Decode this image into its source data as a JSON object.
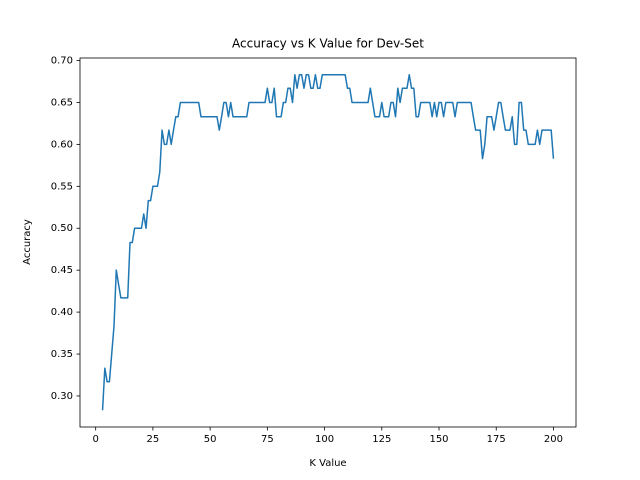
{
  "chart_data": {
    "type": "line",
    "title": "Accuracy vs K Value for Dev-Set",
    "x_label": "K Value",
    "y_label": "Accuracy",
    "x": [
      3,
      4,
      5,
      6,
      7,
      8,
      9,
      10,
      11,
      12,
      13,
      14,
      15,
      16,
      17,
      18,
      19,
      20,
      21,
      22,
      23,
      24,
      25,
      26,
      27,
      28,
      29,
      30,
      31,
      32,
      33,
      34,
      35,
      36,
      37,
      38,
      39,
      40,
      41,
      42,
      43,
      44,
      45,
      46,
      47,
      48,
      49,
      50,
      51,
      52,
      53,
      54,
      55,
      56,
      57,
      58,
      59,
      60,
      61,
      62,
      63,
      64,
      65,
      66,
      67,
      68,
      69,
      70,
      71,
      72,
      73,
      74,
      75,
      76,
      77,
      78,
      79,
      80,
      81,
      82,
      83,
      84,
      85,
      86,
      87,
      88,
      89,
      90,
      91,
      92,
      93,
      94,
      95,
      96,
      97,
      98,
      99,
      100,
      101,
      102,
      103,
      104,
      105,
      106,
      107,
      108,
      109,
      110,
      111,
      112,
      113,
      114,
      115,
      116,
      117,
      118,
      119,
      120,
      121,
      122,
      123,
      124,
      125,
      126,
      127,
      128,
      129,
      130,
      131,
      132,
      133,
      134,
      135,
      136,
      137,
      138,
      139,
      140,
      141,
      142,
      143,
      144,
      145,
      146,
      147,
      148,
      149,
      150,
      151,
      152,
      153,
      154,
      155,
      156,
      157,
      158,
      159,
      160,
      161,
      162,
      163,
      164,
      165,
      166,
      167,
      168,
      169,
      170,
      171,
      172,
      173,
      174,
      175,
      176,
      177,
      178,
      179,
      180,
      181,
      182,
      183,
      184,
      185,
      186,
      187,
      188,
      189,
      190,
      191,
      192,
      193,
      194,
      195,
      196,
      197,
      198,
      199,
      200
    ],
    "series": [
      {
        "color": "#1f77b4",
        "values": [
          0.283,
          0.333,
          0.317,
          0.317,
          0.35,
          0.383,
          0.45,
          0.433,
          0.417,
          0.417,
          0.417,
          0.417,
          0.483,
          0.483,
          0.5,
          0.5,
          0.5,
          0.5,
          0.517,
          0.5,
          0.533,
          0.533,
          0.55,
          0.55,
          0.55,
          0.567,
          0.617,
          0.6,
          0.6,
          0.617,
          0.6,
          0.617,
          0.633,
          0.633,
          0.65,
          0.65,
          0.65,
          0.65,
          0.65,
          0.65,
          0.65,
          0.65,
          0.65,
          0.633,
          0.633,
          0.633,
          0.633,
          0.633,
          0.633,
          0.633,
          0.633,
          0.617,
          0.633,
          0.65,
          0.65,
          0.633,
          0.65,
          0.633,
          0.633,
          0.633,
          0.633,
          0.633,
          0.633,
          0.633,
          0.65,
          0.65,
          0.65,
          0.65,
          0.65,
          0.65,
          0.65,
          0.65,
          0.667,
          0.65,
          0.65,
          0.667,
          0.633,
          0.633,
          0.633,
          0.65,
          0.65,
          0.667,
          0.667,
          0.65,
          0.683,
          0.667,
          0.683,
          0.683,
          0.667,
          0.683,
          0.683,
          0.667,
          0.667,
          0.683,
          0.667,
          0.667,
          0.683,
          0.683,
          0.683,
          0.683,
          0.683,
          0.683,
          0.683,
          0.683,
          0.683,
          0.683,
          0.683,
          0.667,
          0.667,
          0.65,
          0.65,
          0.65,
          0.65,
          0.65,
          0.65,
          0.65,
          0.65,
          0.667,
          0.65,
          0.633,
          0.633,
          0.633,
          0.65,
          0.633,
          0.633,
          0.633,
          0.65,
          0.65,
          0.633,
          0.667,
          0.65,
          0.667,
          0.667,
          0.667,
          0.683,
          0.667,
          0.667,
          0.633,
          0.633,
          0.65,
          0.65,
          0.65,
          0.65,
          0.65,
          0.633,
          0.65,
          0.633,
          0.65,
          0.65,
          0.633,
          0.65,
          0.65,
          0.65,
          0.65,
          0.633,
          0.65,
          0.65,
          0.65,
          0.65,
          0.65,
          0.65,
          0.65,
          0.633,
          0.617,
          0.617,
          0.617,
          0.583,
          0.6,
          0.633,
          0.633,
          0.633,
          0.617,
          0.633,
          0.65,
          0.65,
          0.633,
          0.617,
          0.617,
          0.617,
          0.633,
          0.6,
          0.6,
          0.65,
          0.65,
          0.617,
          0.617,
          0.6,
          0.6,
          0.6,
          0.6,
          0.617,
          0.6,
          0.617,
          0.617,
          0.617,
          0.617,
          0.617,
          0.583
        ]
      }
    ],
    "xlim": [
      -6.85,
      209.85
    ],
    "xticks": [
      0,
      25,
      50,
      75,
      100,
      125,
      150,
      175,
      200
    ],
    "ylim": [
      0.263,
      0.703
    ],
    "yticks": [
      {
        "value": 0.3,
        "label": "0.30"
      },
      0.35,
      {
        "value": 0.4,
        "label": "0.40"
      },
      0.45,
      {
        "value": 0.5,
        "label": "0.50"
      },
      0.55,
      {
        "value": 0.6,
        "label": "0.60"
      },
      0.65,
      {
        "value": 0.7,
        "label": "0.70"
      }
    ],
    "grid": false
  }
}
